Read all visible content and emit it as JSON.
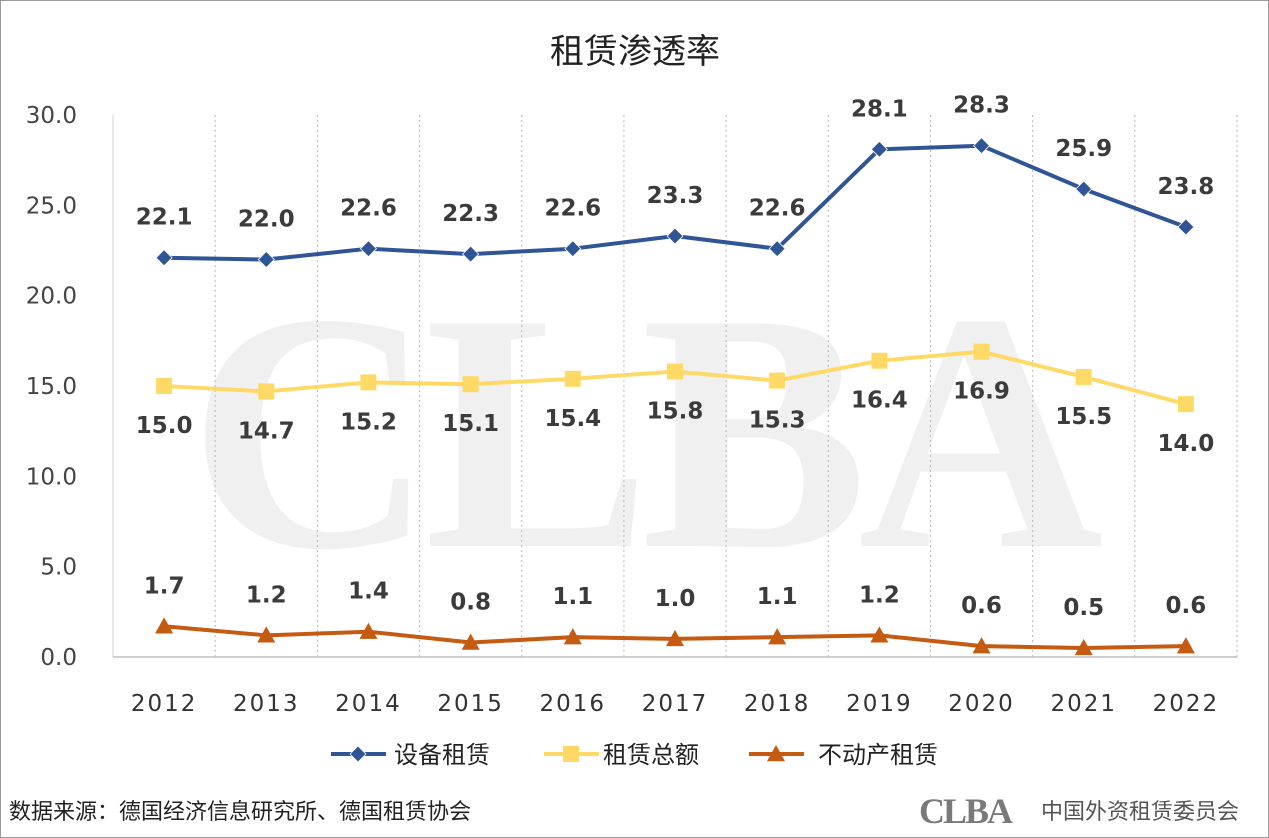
{
  "chart_data": {
    "type": "line",
    "title": "租赁渗透率",
    "categories": [
      "2012",
      "2013",
      "2014",
      "2015",
      "2016",
      "2017",
      "2018",
      "2019",
      "2020",
      "2021",
      "2022"
    ],
    "ylim": [
      0,
      30
    ],
    "yticks": [
      "0.0",
      "5.0",
      "10.0",
      "15.0",
      "20.0",
      "25.0",
      "30.0"
    ],
    "grid": "vertical dotted",
    "legend_position": "bottom",
    "series": [
      {
        "name": "设备租赁",
        "color": "#2f5597",
        "marker": "diamond",
        "label_position": "above",
        "values": [
          22.1,
          22.0,
          22.6,
          22.3,
          22.6,
          23.3,
          22.6,
          28.1,
          28.3,
          25.9,
          23.8
        ],
        "labels": [
          "22.1",
          "22.0",
          "22.6",
          "22.3",
          "22.6",
          "23.3",
          "22.6",
          "28.1",
          "28.3",
          "25.9",
          "23.8"
        ]
      },
      {
        "name": "租赁总额",
        "color": "#ffd966",
        "marker": "square",
        "label_position": "below",
        "values": [
          15.0,
          14.7,
          15.2,
          15.1,
          15.4,
          15.8,
          15.3,
          16.4,
          16.9,
          15.5,
          14.0
        ],
        "labels": [
          "15.0",
          "14.7",
          "15.2",
          "15.1",
          "15.4",
          "15.8",
          "15.3",
          "16.4",
          "16.9",
          "15.5",
          "14.0"
        ]
      },
      {
        "name": "不动产租赁",
        "color": "#c55a11",
        "marker": "triangle",
        "label_position": "above",
        "values": [
          1.7,
          1.2,
          1.4,
          0.8,
          1.1,
          1.0,
          1.1,
          1.2,
          0.6,
          0.5,
          0.6
        ],
        "labels": [
          "1.7",
          "1.2",
          "1.4",
          "0.8",
          "1.1",
          "1.0",
          "1.1",
          "1.2",
          "0.6",
          "0.5",
          "0.6"
        ]
      }
    ]
  },
  "source": "数据来源：德国经济信息研究所、德国租赁协会",
  "watermark": "CLBA",
  "logo": {
    "mark": "CLBA",
    "text": "中国外资租赁委员会"
  }
}
